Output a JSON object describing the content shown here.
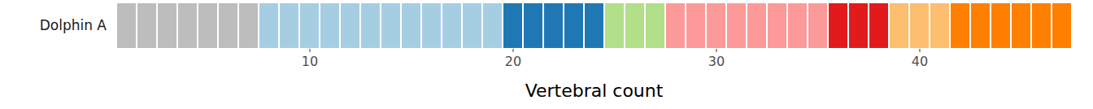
{
  "chart_data": {
    "type": "tile",
    "orientation": "horizontal",
    "categories": [
      "Dolphin A"
    ],
    "x": [
      1,
      2,
      3,
      4,
      5,
      6,
      7,
      8,
      9,
      10,
      11,
      12,
      13,
      14,
      15,
      16,
      17,
      18,
      19,
      20,
      21,
      22,
      23,
      24,
      25,
      26,
      27,
      28,
      29,
      30,
      31,
      32,
      33,
      34,
      35,
      36,
      37,
      38,
      39,
      40,
      41,
      42,
      43,
      44,
      45,
      46,
      47
    ],
    "colors": [
      "#bdbdbd",
      "#bdbdbd",
      "#bdbdbd",
      "#bdbdbd",
      "#bdbdbd",
      "#bdbdbd",
      "#bdbdbd",
      "#a6cee3",
      "#a6cee3",
      "#a6cee3",
      "#a6cee3",
      "#a6cee3",
      "#a6cee3",
      "#a6cee3",
      "#a6cee3",
      "#a6cee3",
      "#a6cee3",
      "#a6cee3",
      "#a6cee3",
      "#1f78b4",
      "#1f78b4",
      "#1f78b4",
      "#1f78b4",
      "#1f78b4",
      "#b2df8a",
      "#b2df8a",
      "#b2df8a",
      "#fb9a99",
      "#fb9a99",
      "#fb9a99",
      "#fb9a99",
      "#fb9a99",
      "#fb9a99",
      "#fb9a99",
      "#fb9a99",
      "#e31a1c",
      "#e31a1c",
      "#e31a1c",
      "#fdbf6f",
      "#fdbf6f",
      "#fdbf6f",
      "#ff7f00",
      "#ff7f00",
      "#ff7f00",
      "#ff7f00",
      "#ff7f00",
      "#ff7f00"
    ],
    "xticks": [
      10,
      20,
      30,
      40
    ],
    "xlabel": "Vertebral count"
  }
}
